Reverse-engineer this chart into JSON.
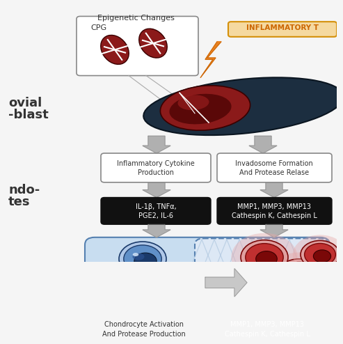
{
  "bg_color": "#f5f5f5",
  "cell_dark_navy": "#1c2e40",
  "cell_nucleus_red": "#8b1a1a",
  "cell_nucleus_dark": "#5a0808",
  "cell_nucleus_mid": "#a02020",
  "cpg_red": "#8b1a1a",
  "text_dark": "#333333",
  "text_white": "#ffffff",
  "orange_bolt": "#e88020",
  "orange_box_fill": "#f5d9a0",
  "orange_box_edge": "#d4900a",
  "blue_cell_body": "#6090c8",
  "blue_cell_dark": "#1a3a6a",
  "blue_cell_mid": "#2a5090",
  "blue_cell_light": "#b0c8e8",
  "chondro_bg": "#c8ddf0",
  "chondro_right_bg": "#dde8f5",
  "red_cell_body": "#c03030",
  "red_cell_dark": "#7a0808",
  "red_cell_glow": "#e8a8a8",
  "arrow_gray": "#b0b0b0",
  "arrow_gray_dark": "#909090",
  "box_edge": "#888888",
  "inflammatory_label": "INFLAMMATORY T",
  "epigenetic_label": "Epigenetic Changes",
  "cpg_label": "CPG",
  "box1_title": "Inflammatory Cytokine\nProduction",
  "box2_title": "Invadosome Formation\nAnd Protease Relase",
  "black_box1": "IL-1β, TNFα,\nPGE2, IL-6",
  "black_box2": "MMP1, MMP3, MMP13\nCathespin K, Cathespin L",
  "bottom_gray_box": "Chondrocyte Activation\nAnd Protease Production",
  "bottom_black_box": "MMP1, MMP3, MMP13\nCathespin K, Cathespin L"
}
